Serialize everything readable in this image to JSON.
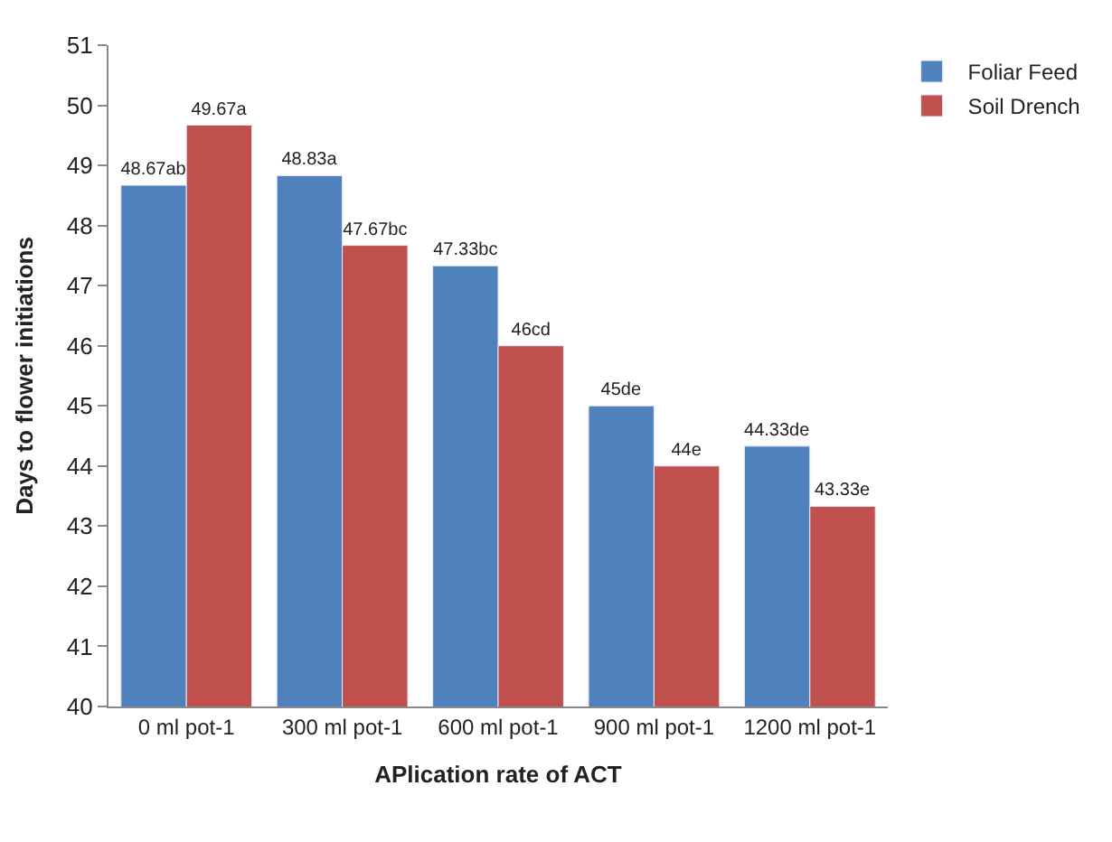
{
  "chart_data": {
    "type": "bar",
    "xlabel": "APlication rate of ACT",
    "ylabel": "Days to flower initiations",
    "categories": [
      "0 ml pot-1",
      "300 ml pot-1",
      "600 ml pot-1",
      "900 ml pot-1",
      "1200 ml pot-1"
    ],
    "series": [
      {
        "name": "Foliar Feed",
        "color": "#4f81bd",
        "values": [
          48.67,
          48.83,
          47.33,
          45,
          44.33
        ],
        "value_labels": [
          "48.67ab",
          "48.83a",
          "47.33bc",
          "45de",
          "44.33de"
        ]
      },
      {
        "name": "Soil Drench",
        "color": "#c0504d",
        "values": [
          49.67,
          47.67,
          46,
          44,
          43.33
        ],
        "value_labels": [
          "49.67a",
          "47.67bc",
          "46cd",
          "44e",
          "43.33e"
        ]
      }
    ],
    "ylim": [
      40,
      51
    ],
    "yticks": [
      40,
      41,
      42,
      43,
      44,
      45,
      46,
      47,
      48,
      49,
      50,
      51
    ],
    "legend": "top right"
  }
}
